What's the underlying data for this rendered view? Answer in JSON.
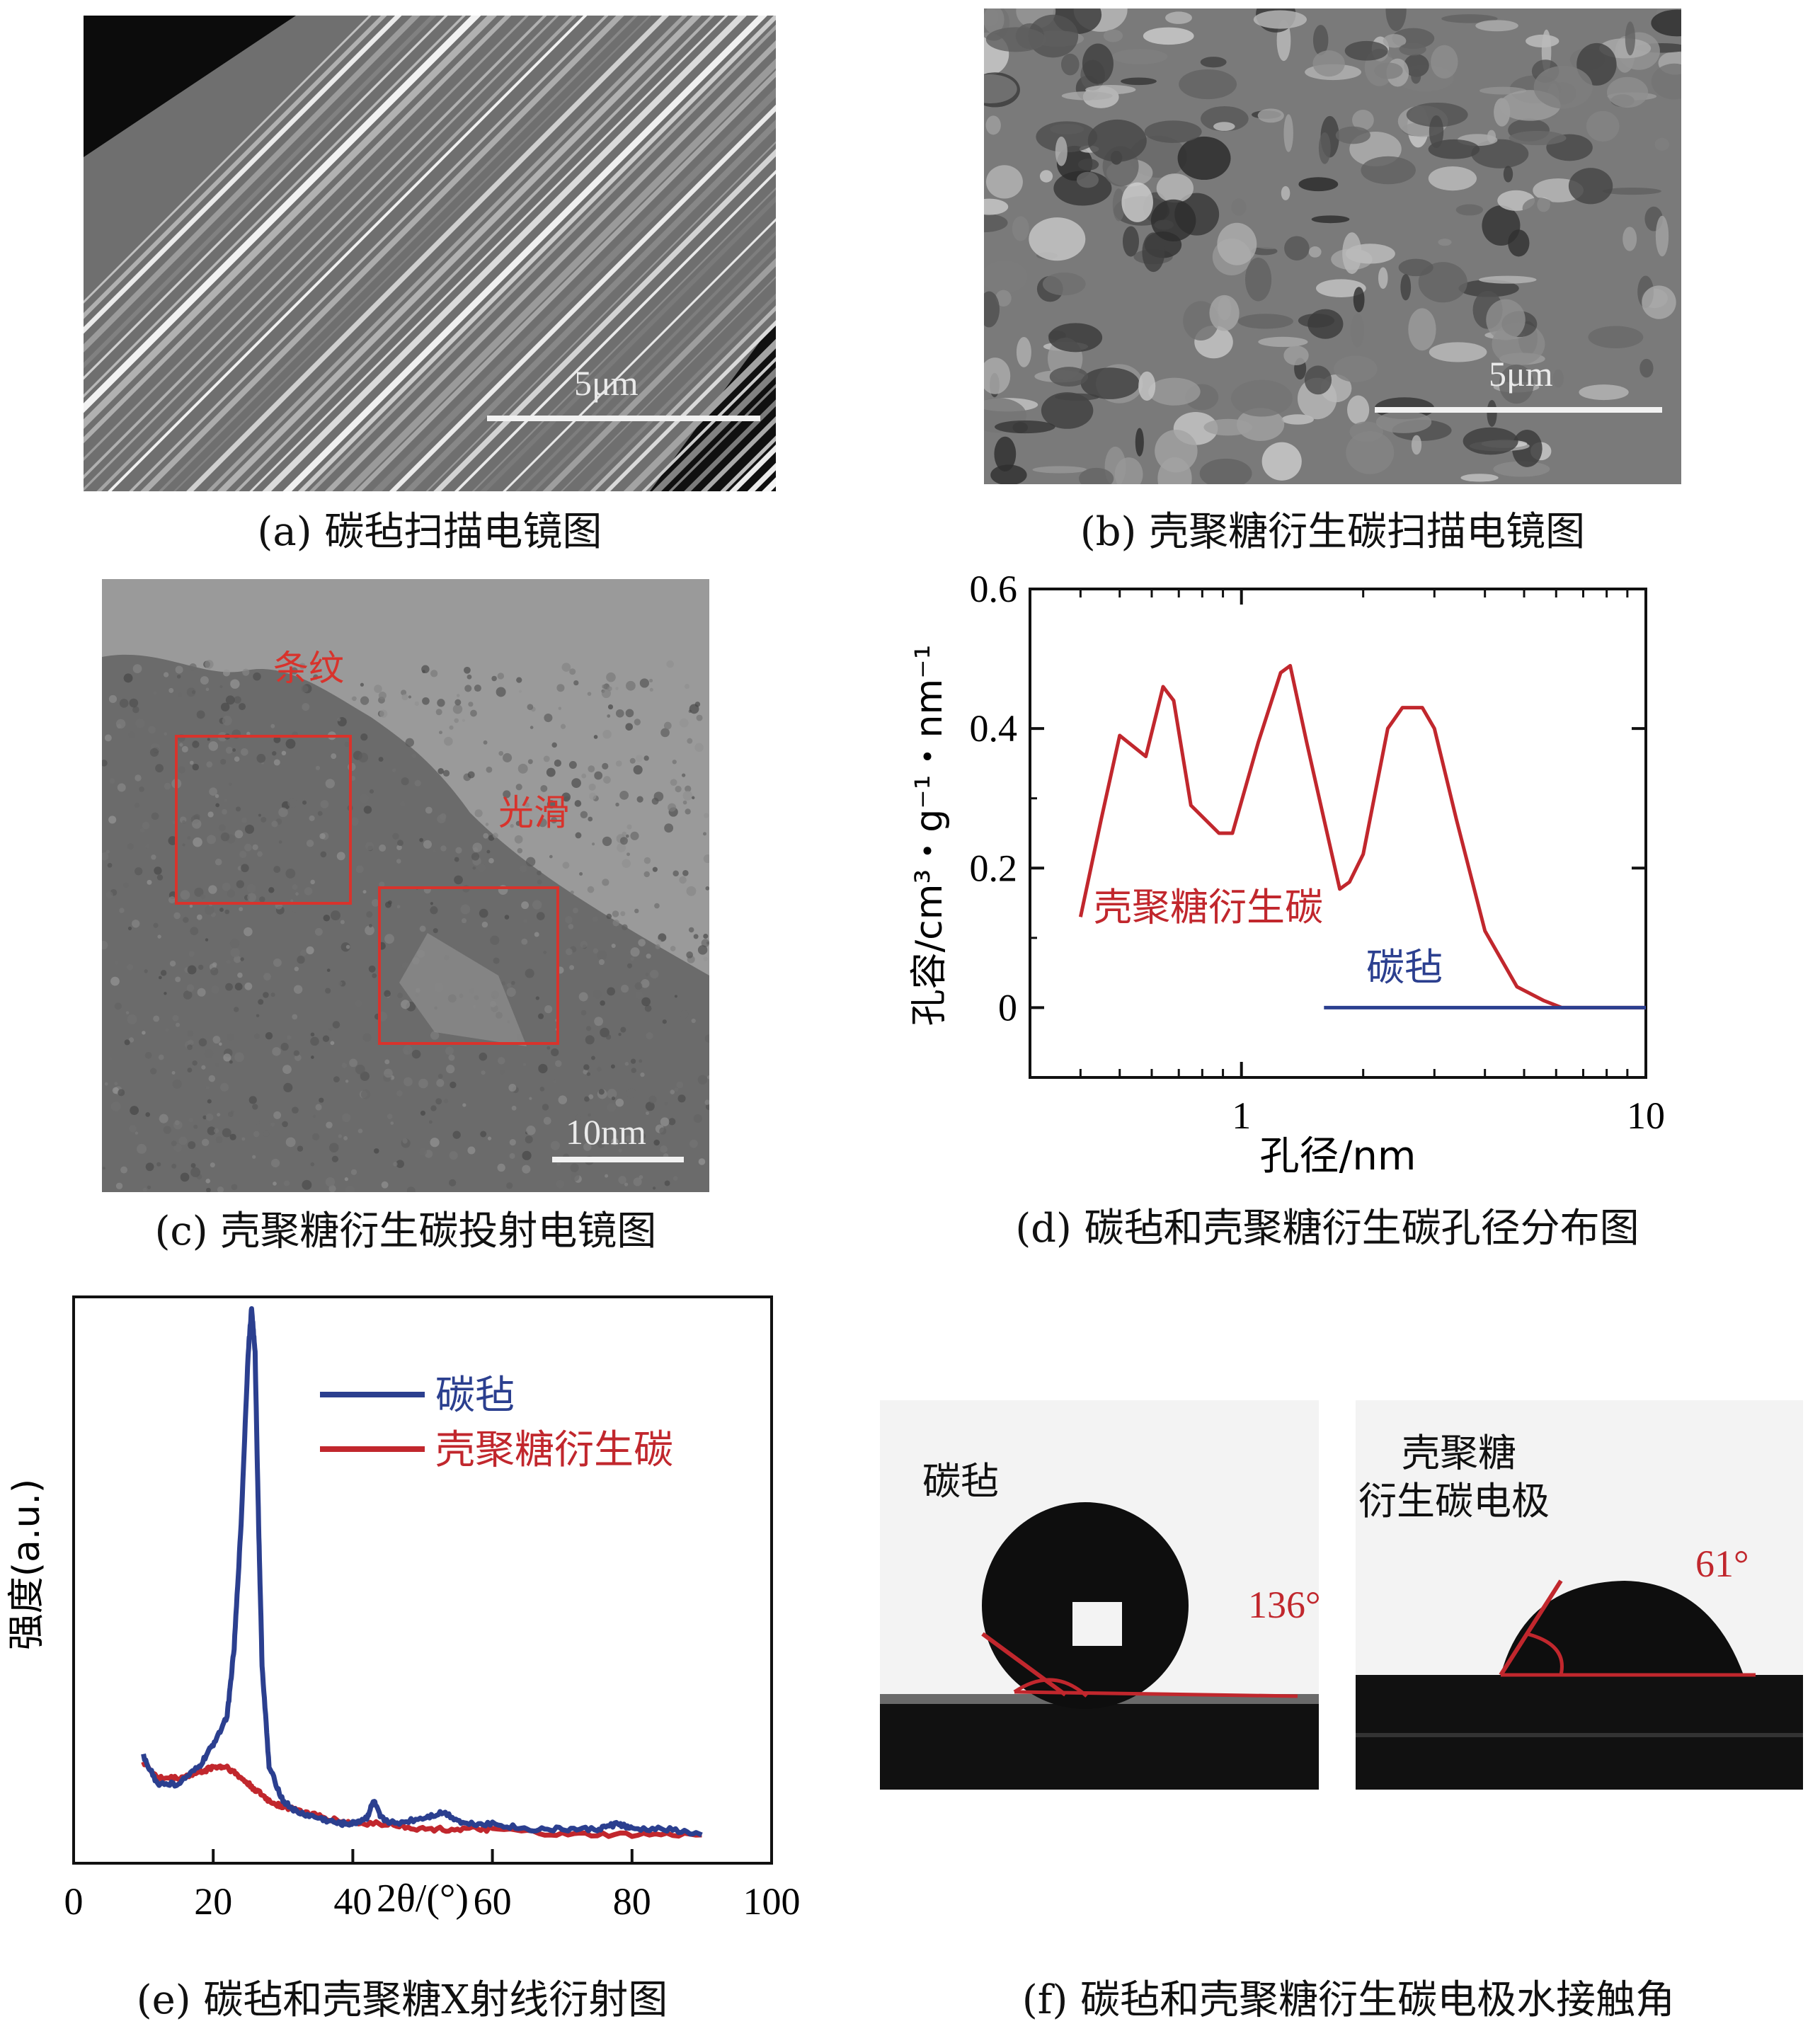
{
  "panels": {
    "a": {
      "caption": "(a) 碳毡扫描电镜图",
      "scale_label": "5μm"
    },
    "b": {
      "caption": "(b) 壳聚糖衍生碳扫描电镜图",
      "scale_label": "5μm"
    },
    "c": {
      "caption": "(c) 壳聚糖衍生碳投射电镜图",
      "scale_label": "10nm",
      "label_striped": "条纹",
      "label_smooth": "光滑"
    },
    "d": {
      "caption": "(d) 碳毡和壳聚糖衍生碳孔径分布图",
      "series_label_chitosan": "壳聚糖衍生碳",
      "series_label_felt": "碳毡"
    },
    "e": {
      "caption": "(e) 碳毡和壳聚糖X射线衍射图",
      "legend_felt": "碳毡",
      "legend_chitosan": "壳聚糖衍生碳"
    },
    "f": {
      "caption": "(f) 碳毡和壳聚糖衍生碳电极水接触角",
      "left_label": "碳毡",
      "left_angle": "136°",
      "right_label_line1": "壳聚糖",
      "right_label_line2": "衍生碳电极",
      "right_angle": "61°"
    }
  },
  "colors": {
    "chitosan_red": "#c1272d",
    "felt_blue": "#2b3f8f",
    "annotation_red": "#d8332c"
  },
  "chart_data": [
    {
      "id": "d",
      "type": "line",
      "xscale": "log",
      "xlabel": "孔径/nm",
      "ylabel": "孔容/cm³・g⁻¹・nm⁻¹",
      "xlim": [
        0.3,
        10
      ],
      "ylim": [
        -0.1,
        0.6
      ],
      "x_ticks": [
        1,
        10
      ],
      "y_ticks": [
        0,
        0.2,
        0.4,
        0.6
      ],
      "y_tick_labels": [
        "0",
        "0.2",
        "0.4",
        "0.6"
      ],
      "x_tick_labels": [
        "1",
        "10"
      ],
      "series": [
        {
          "name": "壳聚糖衍生碳",
          "color": "#c1272d",
          "x": [
            0.4,
            0.45,
            0.5,
            0.58,
            0.64,
            0.68,
            0.75,
            0.88,
            0.95,
            1.1,
            1.25,
            1.32,
            1.45,
            1.6,
            1.75,
            1.85,
            2.0,
            2.3,
            2.5,
            2.8,
            3.0,
            3.4,
            4.0,
            4.8,
            5.6,
            6.2,
            7.0,
            8.0,
            10.0
          ],
          "y": [
            0.13,
            0.27,
            0.39,
            0.36,
            0.46,
            0.44,
            0.29,
            0.25,
            0.25,
            0.38,
            0.48,
            0.49,
            0.38,
            0.27,
            0.17,
            0.18,
            0.22,
            0.4,
            0.43,
            0.43,
            0.4,
            0.27,
            0.11,
            0.03,
            0.01,
            0.0,
            0.0,
            0.0,
            0.0
          ]
        },
        {
          "name": "碳毡",
          "color": "#2b3f8f",
          "x": [
            1.6,
            10.0
          ],
          "y": [
            0.0,
            0.0
          ]
        }
      ]
    },
    {
      "id": "e",
      "type": "line",
      "xlabel": "2θ/(°)",
      "ylabel": "强度(a.u.)",
      "xlim": [
        0,
        100
      ],
      "ylim": [
        0,
        1
      ],
      "x_ticks": [
        0,
        20,
        40,
        60,
        80,
        100
      ],
      "x_tick_labels": [
        "0",
        "20",
        "40",
        "60",
        "80",
        "100"
      ],
      "series": [
        {
          "name": "碳毡",
          "color": "#2b3f8f",
          "x": [
            10,
            12,
            15,
            18,
            20,
            22,
            23,
            24,
            25,
            25.5,
            26,
            26.5,
            27,
            28,
            30,
            32,
            35,
            38,
            40,
            42,
            43,
            44,
            46,
            50,
            53,
            56,
            60,
            65,
            70,
            75,
            78,
            80,
            85,
            90
          ],
          "y": [
            0.19,
            0.14,
            0.14,
            0.17,
            0.21,
            0.26,
            0.38,
            0.6,
            0.9,
            0.98,
            0.9,
            0.6,
            0.35,
            0.17,
            0.11,
            0.09,
            0.08,
            0.07,
            0.07,
            0.08,
            0.11,
            0.08,
            0.07,
            0.08,
            0.09,
            0.07,
            0.07,
            0.06,
            0.06,
            0.06,
            0.07,
            0.06,
            0.06,
            0.05
          ]
        },
        {
          "name": "壳聚糖衍生碳",
          "color": "#c1272d",
          "x": [
            10,
            12,
            15,
            18,
            20,
            22,
            24,
            26,
            28,
            30,
            33,
            36,
            40,
            45,
            50,
            55,
            60,
            70,
            80,
            90
          ],
          "y": [
            0.18,
            0.15,
            0.15,
            0.16,
            0.17,
            0.17,
            0.15,
            0.13,
            0.11,
            0.1,
            0.09,
            0.08,
            0.07,
            0.07,
            0.06,
            0.06,
            0.06,
            0.05,
            0.05,
            0.05
          ]
        }
      ]
    }
  ]
}
